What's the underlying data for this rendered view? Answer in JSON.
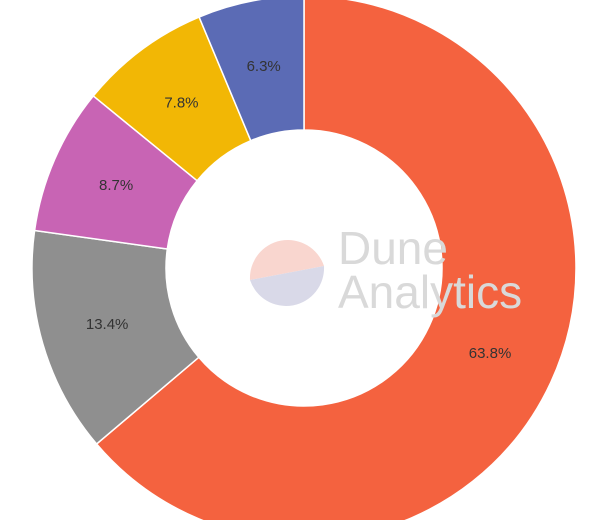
{
  "chart_data": {
    "type": "donut",
    "values": [
      63.8,
      13.4,
      8.7,
      7.8,
      6.3
    ],
    "value_labels": [
      "63.8%",
      "13.4%",
      "8.7%",
      "7.8%",
      "6.3%"
    ],
    "colors": [
      "#f4623f",
      "#8f8f8f",
      "#c864b4",
      "#f2b705",
      "#5b6bb5"
    ],
    "watermark": [
      "Dune",
      "Analytics"
    ]
  }
}
